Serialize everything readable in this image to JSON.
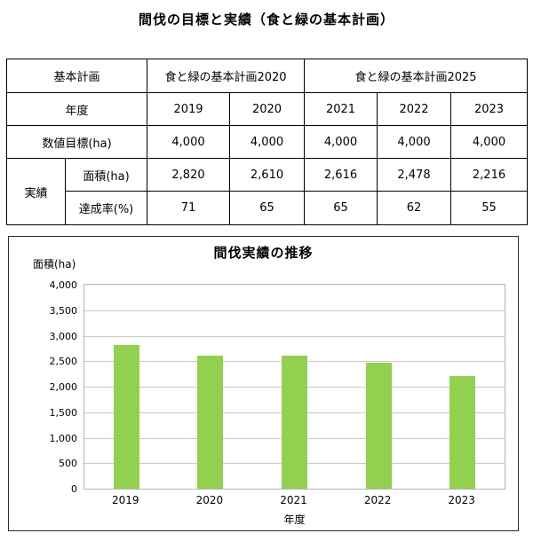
{
  "page_title": "間伐の目標と実績（食と緑の基本計画）",
  "table": {
    "plan_label": "基本計画",
    "plan2020_label": "食と緑の基本計画2020",
    "plan2025_label": "食と緑の基本計画2025",
    "year_label": "年度",
    "years": [
      "2019",
      "2020",
      "2021",
      "2022",
      "2023"
    ],
    "target_label": "数値目標(ha)",
    "targets": [
      "4,000",
      "4,000",
      "4,000",
      "4,000",
      "4,000"
    ],
    "results_group_label": "実績",
    "area_label": "面積(ha)",
    "areas": [
      "2,820",
      "2,610",
      "2,616",
      "2,478",
      "2,216"
    ],
    "rate_label": "達成率(%)",
    "rates": [
      "71",
      "65",
      "65",
      "62",
      "55"
    ]
  },
  "chart_data": {
    "type": "bar",
    "title": "間伐実績の推移",
    "categories": [
      "2019",
      "2020",
      "2021",
      "2022",
      "2023"
    ],
    "values": [
      2820,
      2610,
      2616,
      2478,
      2216
    ],
    "xlabel": "年度",
    "ylabel": "面積(ha)",
    "ylim": [
      0,
      4000
    ],
    "ytick_interval": 500,
    "bar_color": "#92d050",
    "gridline_color": "#c9c9c9",
    "grid": true,
    "legend_position": "none"
  }
}
